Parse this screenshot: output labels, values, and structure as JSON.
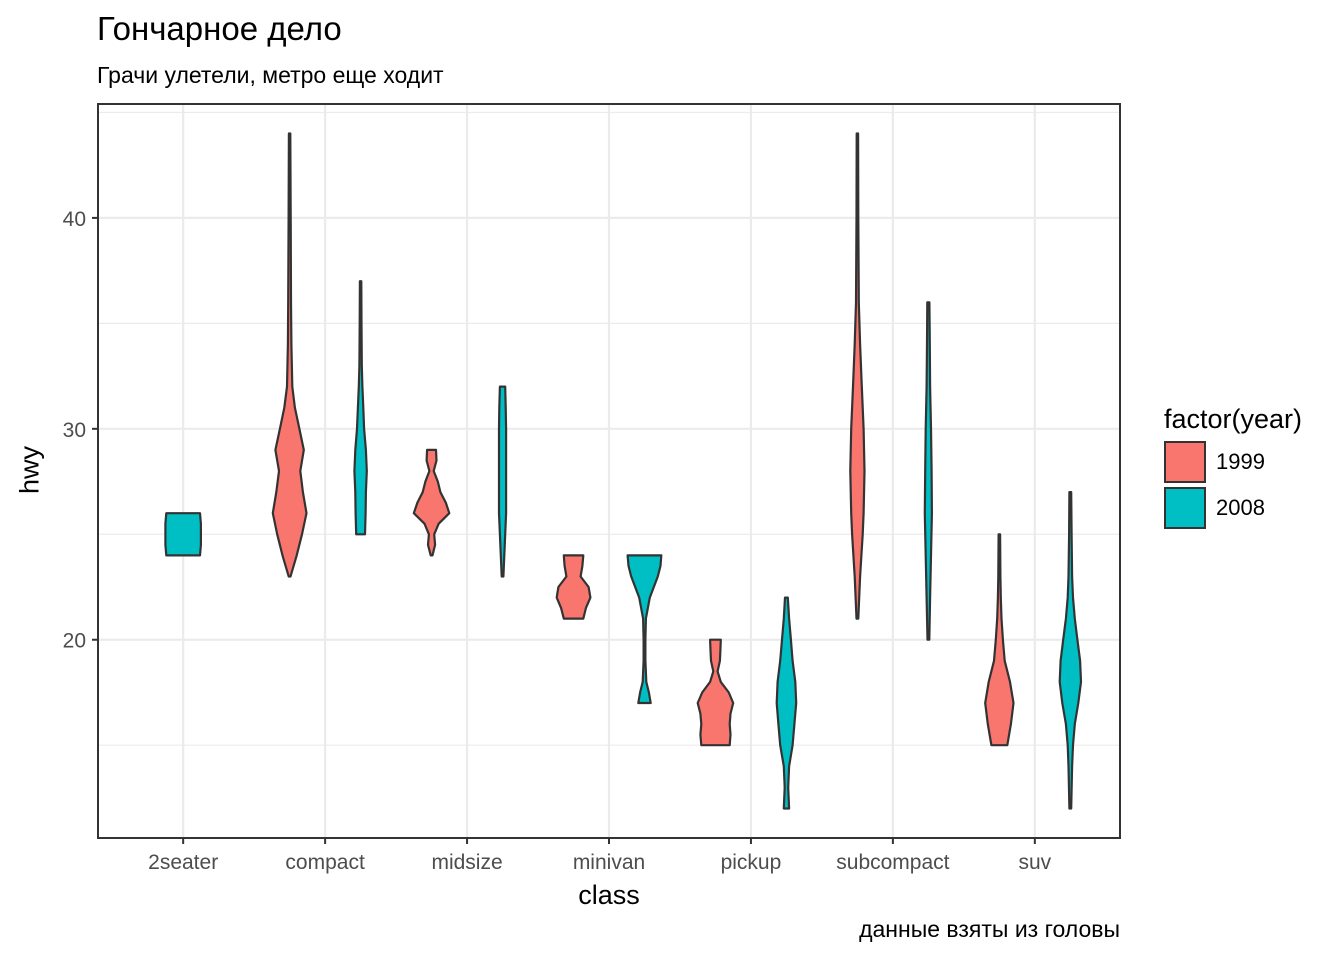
{
  "chart_data": {
    "type": "violin",
    "title": "Гончарное дело",
    "subtitle": "Грачи улетели, метро еще ходит",
    "caption": "данные взяты из головы",
    "xlabel": "class",
    "ylabel": "hwy",
    "categories": [
      "2seater",
      "compact",
      "midsize",
      "minivan",
      "pickup",
      "subcompact",
      "suv"
    ],
    "ylim": [
      10.6,
      45.4
    ],
    "yticks": [
      20,
      30,
      40
    ],
    "grid": true,
    "legend": {
      "title": "factor(year)",
      "position": "right",
      "entries": [
        {
          "label": "1999",
          "color": "#F8766D"
        },
        {
          "label": "2008",
          "color": "#00BFC4"
        }
      ]
    },
    "series": [
      {
        "name": "1999",
        "color": "#F8766D",
        "violins": [
          {
            "category": "compact",
            "min": 23,
            "max": 44,
            "profile": [
              [
                23,
                0.05
              ],
              [
                24,
                0.4
              ],
              [
                25,
                0.7
              ],
              [
                26,
                0.95
              ],
              [
                27,
                0.75
              ],
              [
                28,
                0.6
              ],
              [
                29,
                0.8
              ],
              [
                30,
                0.55
              ],
              [
                31,
                0.3
              ],
              [
                32,
                0.15
              ],
              [
                34,
                0.1
              ],
              [
                36,
                0.08
              ],
              [
                40,
                0.06
              ],
              [
                44,
                0.04
              ]
            ]
          },
          {
            "category": "midsize",
            "min": 24,
            "max": 29,
            "profile": [
              [
                24,
                0.05
              ],
              [
                24.5,
                0.2
              ],
              [
                25,
                0.15
              ],
              [
                25.5,
                0.4
              ],
              [
                26,
                1.0
              ],
              [
                26.5,
                0.8
              ],
              [
                27,
                0.5
              ],
              [
                27.5,
                0.35
              ],
              [
                28,
                0.12
              ],
              [
                28.5,
                0.28
              ],
              [
                29,
                0.25
              ]
            ]
          },
          {
            "category": "minivan",
            "min": 21,
            "max": 24,
            "profile": [
              [
                21,
                0.55
              ],
              [
                21.5,
                0.7
              ],
              [
                22,
                0.95
              ],
              [
                22.5,
                0.85
              ],
              [
                23,
                0.4
              ],
              [
                23.5,
                0.5
              ],
              [
                24,
                0.55
              ]
            ]
          },
          {
            "category": "pickup",
            "min": 15,
            "max": 20,
            "profile": [
              [
                15,
                0.8
              ],
              [
                15.5,
                0.85
              ],
              [
                16,
                0.8
              ],
              [
                16.5,
                0.85
              ],
              [
                17,
                1.0
              ],
              [
                17.5,
                0.75
              ],
              [
                18,
                0.3
              ],
              [
                18.5,
                0.12
              ],
              [
                19,
                0.25
              ],
              [
                19.5,
                0.28
              ],
              [
                20,
                0.3
              ]
            ]
          },
          {
            "category": "subcompact",
            "min": 21,
            "max": 44,
            "profile": [
              [
                21,
                0.05
              ],
              [
                23,
                0.15
              ],
              [
                25,
                0.3
              ],
              [
                26,
                0.35
              ],
              [
                28,
                0.4
              ],
              [
                30,
                0.35
              ],
              [
                32,
                0.25
              ],
              [
                34,
                0.15
              ],
              [
                36,
                0.08
              ],
              [
                40,
                0.05
              ],
              [
                44,
                0.04
              ]
            ]
          },
          {
            "category": "suv",
            "min": 15,
            "max": 25,
            "profile": [
              [
                15,
                0.45
              ],
              [
                16,
                0.65
              ],
              [
                17,
                0.8
              ],
              [
                18,
                0.6
              ],
              [
                19,
                0.3
              ],
              [
                20,
                0.2
              ],
              [
                21,
                0.12
              ],
              [
                22,
                0.08
              ],
              [
                23,
                0.06
              ],
              [
                25,
                0.04
              ]
            ]
          }
        ]
      },
      {
        "name": "2008",
        "color": "#00BFC4",
        "violins": [
          {
            "category": "2seater",
            "min": 24,
            "max": 26,
            "profile": [
              [
                24,
                0.95
              ],
              [
                24.5,
                1.0
              ],
              [
                25,
                1.0
              ],
              [
                25.5,
                1.0
              ],
              [
                26,
                0.95
              ]
            ]
          },
          {
            "category": "compact",
            "min": 25,
            "max": 37,
            "profile": [
              [
                25,
                0.25
              ],
              [
                26,
                0.28
              ],
              [
                27,
                0.3
              ],
              [
                28,
                0.35
              ],
              [
                29,
                0.3
              ],
              [
                30,
                0.2
              ],
              [
                31,
                0.15
              ],
              [
                32,
                0.1
              ],
              [
                33,
                0.07
              ],
              [
                35,
                0.05
              ],
              [
                37,
                0.04
              ]
            ]
          },
          {
            "category": "midsize",
            "min": 23,
            "max": 32,
            "profile": [
              [
                23,
                0.05
              ],
              [
                24,
                0.1
              ],
              [
                25,
                0.15
              ],
              [
                26,
                0.2
              ],
              [
                27,
                0.2
              ],
              [
                28,
                0.2
              ],
              [
                29,
                0.2
              ],
              [
                30,
                0.2
              ],
              [
                31,
                0.18
              ],
              [
                32,
                0.15
              ]
            ]
          },
          {
            "category": "minivan",
            "min": 17,
            "max": 24,
            "profile": [
              [
                17,
                0.35
              ],
              [
                17.5,
                0.25
              ],
              [
                18,
                0.1
              ],
              [
                19,
                0.05
              ],
              [
                20,
                0.05
              ],
              [
                21,
                0.08
              ],
              [
                22,
                0.3
              ],
              [
                23,
                0.75
              ],
              [
                23.5,
                0.9
              ],
              [
                24,
                0.95
              ]
            ]
          },
          {
            "category": "pickup",
            "min": 12,
            "max": 22,
            "profile": [
              [
                12,
                0.15
              ],
              [
                13,
                0.1
              ],
              [
                14,
                0.15
              ],
              [
                15,
                0.35
              ],
              [
                16,
                0.45
              ],
              [
                17,
                0.55
              ],
              [
                18,
                0.5
              ],
              [
                19,
                0.35
              ],
              [
                20,
                0.25
              ],
              [
                21,
                0.15
              ],
              [
                22,
                0.08
              ]
            ]
          },
          {
            "category": "subcompact",
            "min": 20,
            "max": 36,
            "profile": [
              [
                20,
                0.05
              ],
              [
                22,
                0.1
              ],
              [
                24,
                0.15
              ],
              [
                26,
                0.2
              ],
              [
                28,
                0.18
              ],
              [
                30,
                0.15
              ],
              [
                32,
                0.1
              ],
              [
                34,
                0.08
              ],
              [
                36,
                0.06
              ]
            ]
          },
          {
            "category": "suv",
            "min": 12,
            "max": 27,
            "profile": [
              [
                12,
                0.05
              ],
              [
                14,
                0.1
              ],
              [
                15,
                0.15
              ],
              [
                16,
                0.25
              ],
              [
                17,
                0.45
              ],
              [
                18,
                0.6
              ],
              [
                19,
                0.55
              ],
              [
                20,
                0.4
              ],
              [
                21,
                0.25
              ],
              [
                22,
                0.15
              ],
              [
                23,
                0.1
              ],
              [
                25,
                0.07
              ],
              [
                27,
                0.05
              ]
            ]
          }
        ]
      }
    ]
  }
}
